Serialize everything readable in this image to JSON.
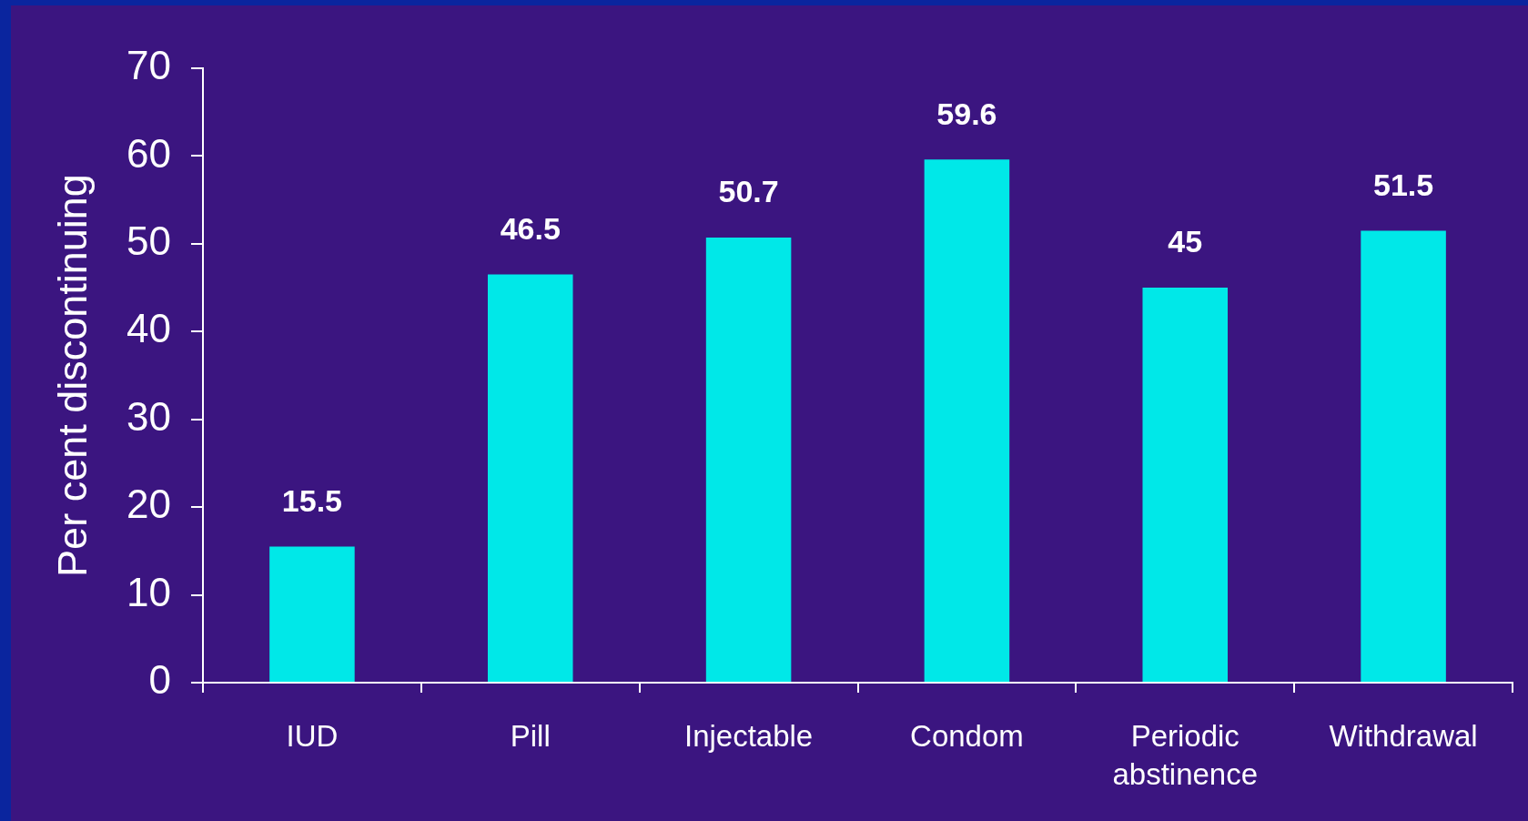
{
  "chart_data": {
    "type": "bar",
    "ylabel": "Per cent discontinuing",
    "categories": [
      "IUD",
      "Pill",
      "Injectable",
      "Condom",
      "Periodic abstinence",
      "Withdrawal"
    ],
    "values": [
      15.5,
      46.5,
      50.7,
      59.6,
      45,
      51.5
    ],
    "color": "#00e8e8",
    "ylim": [
      0,
      70
    ],
    "yticks": [
      0,
      10,
      20,
      30,
      40,
      50,
      60,
      70
    ],
    "data_labels": true,
    "legend": false
  }
}
